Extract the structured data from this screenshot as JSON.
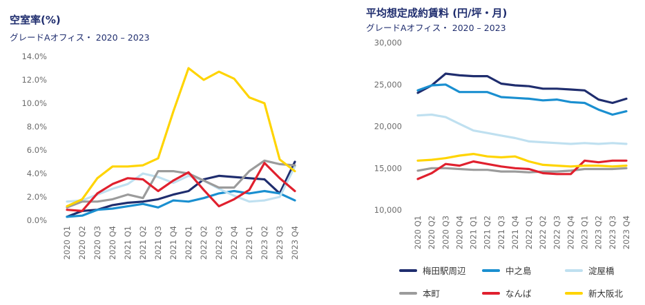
{
  "left_chart": {
    "title": "空室率(%)",
    "subtitle": "グレードAオフィス・ 2020 – 2023"
  },
  "right_chart": {
    "title": "平均想定成約賃料 (円/坪・月)",
    "subtitle": "グレードAオフィス・ 2020 – 2023"
  },
  "colors": {
    "umeda": "#1f2d6e",
    "nakanoshima": "#1a8fd0",
    "yodoyabashi": "#bfe0f0",
    "honmachi": "#9b9b9b",
    "namba": "#e0202e",
    "shinosaka": "#ffd400"
  },
  "chart_data": [
    {
      "type": "line",
      "title": "空室率(%)",
      "categories": [
        "2020 Q1",
        "2020 Q2",
        "2020 Q3",
        "2020 Q4",
        "2021 Q1",
        "2021 Q2",
        "2021 Q3",
        "2021 Q4",
        "2022 Q1",
        "2022 Q2",
        "2022 Q3",
        "2022 Q4",
        "2023 Q1",
        "2023 Q2",
        "2023 Q3",
        "2023 Q4"
      ],
      "ylim": [
        0,
        14
      ],
      "yticks": [
        "0.0%",
        "2.0%",
        "4.0%",
        "6.0%",
        "8.0%",
        "10.0%",
        "12.0%",
        "14.0%"
      ],
      "ytick_values": [
        0,
        2,
        4,
        6,
        8,
        10,
        12,
        14
      ],
      "grid": false,
      "series": [
        {
          "name": "梅田駅周辺",
          "key": "umeda",
          "values": [
            0.3,
            0.8,
            0.9,
            1.3,
            1.5,
            1.6,
            1.8,
            2.2,
            2.5,
            3.5,
            3.8,
            3.7,
            3.6,
            3.5,
            2.3,
            5.0
          ]
        },
        {
          "name": "中之島",
          "key": "nakanoshima",
          "values": [
            0.3,
            0.4,
            0.9,
            1.0,
            1.2,
            1.4,
            1.1,
            1.7,
            1.6,
            1.9,
            2.3,
            2.5,
            2.3,
            2.5,
            2.3,
            1.7
          ]
        },
        {
          "name": "淀屋橋",
          "key": "yodoyabashi",
          "values": [
            1.6,
            1.7,
            2.2,
            2.7,
            3.1,
            4.0,
            3.7,
            3.2,
            3.8,
            3.4,
            2.7,
            2.1,
            1.6,
            1.7,
            2.0,
            4.6
          ]
        },
        {
          "name": "本町",
          "key": "honmachi",
          "values": [
            1.1,
            1.6,
            1.6,
            1.8,
            2.2,
            1.9,
            4.2,
            4.2,
            4.0,
            3.4,
            2.8,
            2.8,
            4.2,
            5.1,
            4.8,
            4.7
          ]
        },
        {
          "name": "なんば",
          "key": "namba",
          "values": [
            0.9,
            0.8,
            2.3,
            3.1,
            3.6,
            3.5,
            2.5,
            3.4,
            4.1,
            2.6,
            1.2,
            1.8,
            2.6,
            4.9,
            3.6,
            2.5
          ]
        },
        {
          "name": "新大阪北",
          "key": "shinosaka",
          "values": [
            1.2,
            1.8,
            3.6,
            4.6,
            4.6,
            4.7,
            5.3,
            9.3,
            13.0,
            12.0,
            12.7,
            12.1,
            10.5,
            10.0,
            5.2,
            4.2
          ]
        }
      ]
    },
    {
      "type": "line",
      "title": "平均想定成約賃料 (円/坪・月)",
      "categories": [
        "2020 Q1",
        "2020 Q2",
        "2020 Q3",
        "2020 Q4",
        "2021 Q1",
        "2021 Q2",
        "2021 Q3",
        "2021 Q4",
        "2022 Q1",
        "2022 Q2",
        "2022 Q3",
        "2022 Q4",
        "2023 Q1",
        "2023 Q2",
        "2023 Q3",
        "2023 Q4"
      ],
      "ylim": [
        10000,
        30000
      ],
      "yticks": [
        "10,000",
        "15,000",
        "20,000",
        "25,000",
        "30,000"
      ],
      "ytick_values": [
        10000,
        15000,
        20000,
        25000,
        30000
      ],
      "grid": false,
      "legend": "bottom",
      "series": [
        {
          "name": "梅田駅周辺",
          "key": "umeda",
          "values": [
            24000,
            24900,
            26300,
            26100,
            26000,
            26000,
            25100,
            24900,
            24800,
            24500,
            24500,
            24400,
            24300,
            23200,
            22800,
            23300
          ]
        },
        {
          "name": "中之島",
          "key": "nakanoshima",
          "values": [
            24300,
            24900,
            25000,
            24100,
            24100,
            24100,
            23500,
            23400,
            23300,
            23100,
            23200,
            22900,
            22800,
            22000,
            21400,
            21800
          ]
        },
        {
          "name": "淀屋橋",
          "key": "yodoyabashi",
          "values": [
            21300,
            21400,
            21100,
            20300,
            19500,
            19200,
            18900,
            18600,
            18200,
            18100,
            18000,
            17900,
            18000,
            17900,
            18000,
            17900
          ]
        },
        {
          "name": "本町",
          "key": "honmachi",
          "values": [
            14700,
            15000,
            15000,
            14900,
            14800,
            14800,
            14600,
            14600,
            14500,
            14600,
            14600,
            14700,
            14900,
            14900,
            14900,
            15000
          ]
        },
        {
          "name": "なんば",
          "key": "namba",
          "values": [
            13700,
            14400,
            15500,
            15300,
            15800,
            15500,
            15200,
            15000,
            14900,
            14400,
            14300,
            14300,
            15900,
            15700,
            15900,
            15900
          ]
        },
        {
          "name": "新大阪北",
          "key": "shinosaka",
          "values": [
            15900,
            16000,
            16200,
            16500,
            16700,
            16400,
            16300,
            16400,
            15800,
            15400,
            15300,
            15200,
            15300,
            15300,
            15200,
            15300
          ]
        }
      ]
    }
  ],
  "legend_items": [
    {
      "name": "梅田駅周辺",
      "key": "umeda"
    },
    {
      "name": "中之島",
      "key": "nakanoshima"
    },
    {
      "name": "淀屋橋",
      "key": "yodoyabashi"
    },
    {
      "name": "本町",
      "key": "honmachi"
    },
    {
      "name": "なんば",
      "key": "namba"
    },
    {
      "name": "新大阪北",
      "key": "shinosaka"
    }
  ]
}
